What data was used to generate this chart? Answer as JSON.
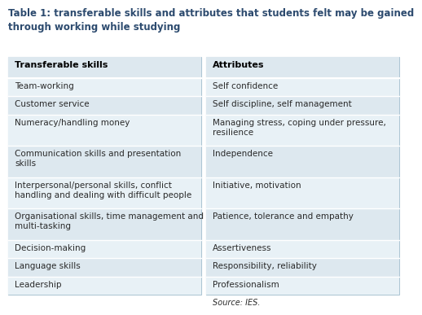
{
  "title": "Table 1: transferable skills and attributes that students felt may be gained\nthrough working while studying",
  "title_fontsize": 8.5,
  "title_color": "#2c4a6e",
  "title_bold": true,
  "bg_color": "#ffffff",
  "table_bg": "#dde8ef",
  "row_bg_light": "#e8f1f6",
  "divider_color": "#ffffff",
  "header_left": "Transferable skills",
  "header_right": "Attributes",
  "header_fontsize": 8,
  "cell_fontsize": 7.5,
  "source_text": "Source: IES.",
  "skills": [
    "Team-working",
    "Customer service",
    "Numeracy/handling money",
    "Communication skills and presentation\nskills",
    "Interpersonal/personal skills, conflict\nhandling and dealing with difficult people",
    "Organisational skills, time management and\nmulti-tasking",
    "Decision-making",
    "Language skills",
    "Leadership"
  ],
  "attributes": [
    "Self confidence",
    "Self discipline, self management",
    "Managing stress, coping under pressure,\nresilience",
    "Independence",
    "Initiative, motivation",
    "Patience, tolerance and empathy",
    "Assertiveness",
    "Responsibility, reliability",
    "Professionalism"
  ],
  "outer_border_color": "#aec6d4",
  "cell_text_color": "#2a2a2a",
  "header_text_color": "#000000",
  "skills_row_lines": [
    1,
    1,
    1,
    2,
    2,
    2,
    1,
    1,
    1
  ],
  "attr_row_lines": [
    1,
    1,
    2,
    1,
    1,
    1,
    1,
    1,
    1
  ]
}
